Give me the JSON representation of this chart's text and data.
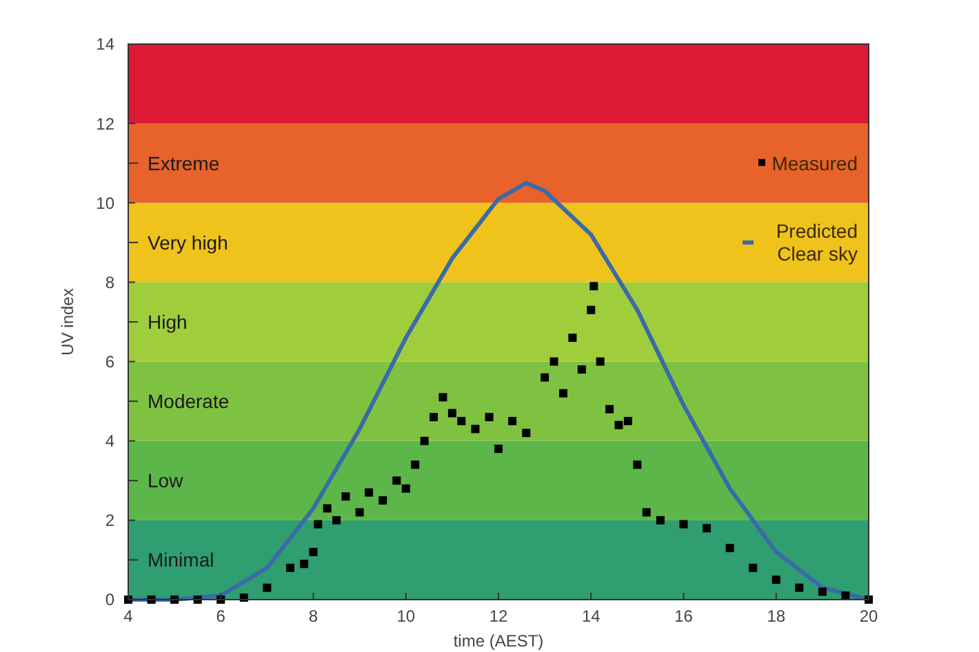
{
  "chart_data": {
    "type": "line",
    "xlabel": "time (AEST)",
    "ylabel": "UV index",
    "xlim": [
      4,
      20
    ],
    "ylim": [
      0,
      14
    ],
    "xticks": [
      4,
      6,
      8,
      10,
      12,
      14,
      16,
      18,
      20
    ],
    "yticks": [
      0,
      2,
      4,
      6,
      8,
      10,
      12,
      14
    ],
    "grid": false,
    "legend": "top right",
    "bands": [
      {
        "axis": "y",
        "from": 0,
        "to": 2,
        "label": "Minimal",
        "color": "#2f9e70"
      },
      {
        "axis": "y",
        "from": 2,
        "to": 4,
        "label": "Low",
        "color": "#5db649"
      },
      {
        "axis": "y",
        "from": 4,
        "to": 6,
        "label": "Moderate",
        "color": "#7fc241"
      },
      {
        "axis": "y",
        "from": 6,
        "to": 8,
        "label": "High",
        "color": "#9fcd3c"
      },
      {
        "axis": "y",
        "from": 8,
        "to": 10,
        "label": "Very high",
        "color": "#efc21c"
      },
      {
        "axis": "y",
        "from": 10,
        "to": 12,
        "label": "Extreme",
        "color": "#e8622b"
      },
      {
        "axis": "y",
        "from": 12,
        "to": 14,
        "label": null,
        "color": "#dc1a33"
      }
    ],
    "series": [
      {
        "name": "Predicted Clear sky",
        "color": "#3b6aa8",
        "line_style": "solid",
        "x": [
          4,
          5,
          6,
          7,
          8,
          9,
          10,
          11,
          12,
          12.6,
          13,
          14,
          15,
          16,
          17,
          18,
          19,
          20
        ],
        "values": [
          0,
          0,
          0.1,
          0.8,
          2.3,
          4.3,
          6.6,
          8.6,
          10.1,
          10.5,
          10.3,
          9.2,
          7.3,
          4.9,
          2.8,
          1.2,
          0.3,
          0
        ]
      },
      {
        "name": "Measured",
        "type": "scatter",
        "color": "#000000",
        "marker": "square",
        "x": [
          4,
          4.5,
          5,
          5.5,
          6,
          6.5,
          7,
          7.5,
          7.8,
          8,
          8.1,
          8.3,
          8.5,
          8.7,
          9,
          9.2,
          9.5,
          9.8,
          10,
          10.2,
          10.4,
          10.6,
          10.8,
          11,
          11.2,
          11.5,
          11.8,
          12,
          12.3,
          12.6,
          13,
          13.2,
          13.4,
          13.6,
          13.8,
          14,
          14.06,
          14.2,
          14.4,
          14.6,
          14.8,
          15,
          15.2,
          15.5,
          16,
          16.5,
          17,
          17.5,
          18,
          18.5,
          19,
          19.5,
          20
        ],
        "values": [
          0,
          0,
          0,
          0,
          0,
          0.05,
          0.3,
          0.8,
          0.9,
          1.2,
          1.9,
          2.3,
          2.0,
          2.6,
          2.2,
          2.7,
          2.5,
          3.0,
          2.8,
          3.4,
          4.0,
          4.6,
          5.1,
          4.7,
          4.5,
          4.3,
          4.6,
          3.8,
          4.5,
          4.2,
          5.6,
          6.0,
          5.2,
          6.6,
          5.8,
          7.3,
          7.9,
          6.0,
          4.8,
          4.4,
          4.5,
          3.4,
          2.2,
          2.0,
          1.9,
          1.8,
          1.3,
          0.8,
          0.5,
          0.3,
          0.2,
          0.1,
          0
        ]
      }
    ]
  }
}
